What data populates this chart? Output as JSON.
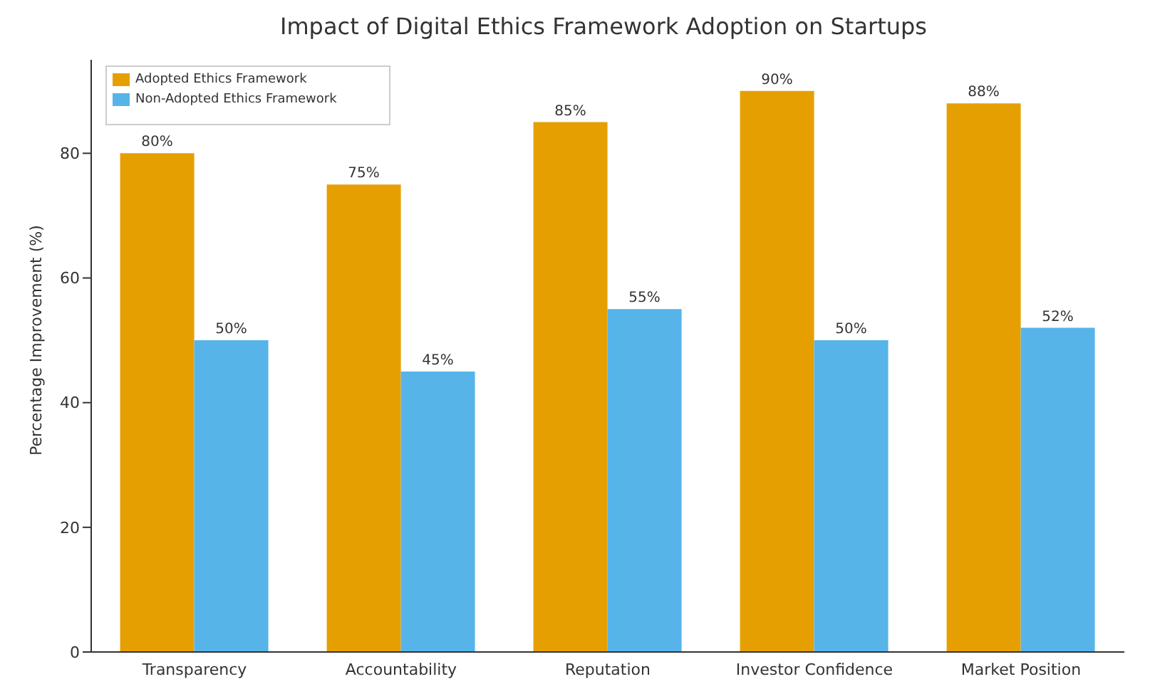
{
  "chart_data": {
    "type": "bar",
    "title": "Impact of Digital Ethics Framework Adoption on Startups",
    "ylabel": "Percentage Improvement (%)",
    "categories": [
      "Transparency",
      "Accountability",
      "Reputation",
      "Investor Confidence",
      "Market Position"
    ],
    "series": [
      {
        "name": "Adopted Ethics Framework",
        "color": "#e69f00",
        "values": [
          80,
          75,
          85,
          90,
          88
        ],
        "value_labels": [
          "80%",
          "75%",
          "85%",
          "90%",
          "88%"
        ]
      },
      {
        "name": "Non-Adopted Ethics Framework",
        "color": "#56b4e9",
        "values": [
          50,
          45,
          55,
          50,
          52
        ],
        "value_labels": [
          "50%",
          "45%",
          "55%",
          "50%",
          "52%"
        ]
      }
    ],
    "ylim": [
      0,
      95
    ],
    "yticks": [
      0,
      20,
      40,
      60,
      80
    ],
    "legend": "top left",
    "grid": false
  }
}
